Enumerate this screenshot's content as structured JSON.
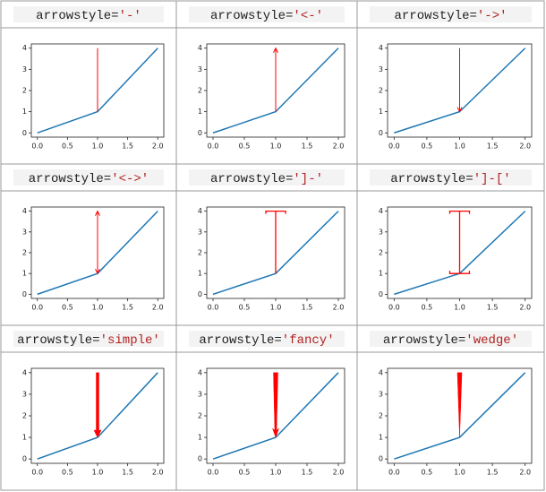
{
  "chart_data": [
    {
      "type": "line",
      "title": [
        "arrowstyle=",
        "'-'"
      ],
      "x": [
        0,
        1,
        2
      ],
      "values": [
        0,
        1,
        4
      ],
      "color": "#1f77b4",
      "xlim": [
        -0.1,
        2.1
      ],
      "ylim": [
        -0.2,
        4.2
      ],
      "xticks": [
        {
          "value": 0,
          "label": "0.0"
        },
        0.5,
        {
          "value": 1,
          "label": "1.0"
        },
        1.5,
        {
          "value": 2,
          "label": "2.0"
        }
      ],
      "yticks": [
        0,
        1,
        2,
        3,
        4
      ],
      "annotation": {
        "arrowstyle": "-",
        "xy": [
          1,
          1
        ],
        "xytext": [
          1,
          4
        ],
        "color": "#ff0000"
      }
    },
    {
      "type": "line",
      "title": [
        "arrowstyle=",
        "'<-'"
      ],
      "x": [
        0,
        1,
        2
      ],
      "values": [
        0,
        1,
        4
      ],
      "color": "#1f77b4",
      "xlim": [
        -0.1,
        2.1
      ],
      "ylim": [
        -0.2,
        4.2
      ],
      "xticks": [
        {
          "value": 0,
          "label": "0.0"
        },
        0.5,
        {
          "value": 1,
          "label": "1.0"
        },
        1.5,
        {
          "value": 2,
          "label": "2.0"
        }
      ],
      "yticks": [
        0,
        1,
        2,
        3,
        4
      ],
      "annotation": {
        "arrowstyle": "<-",
        "xy": [
          1,
          1
        ],
        "xytext": [
          1,
          4
        ],
        "color": "#ff0000"
      }
    },
    {
      "type": "line",
      "title": [
        "arrowstyle=",
        "'->'"
      ],
      "x": [
        0,
        1,
        2
      ],
      "values": [
        0,
        1,
        4
      ],
      "color": "#1f77b4",
      "xlim": [
        -0.1,
        2.1
      ],
      "ylim": [
        -0.2,
        4.2
      ],
      "xticks": [
        {
          "value": 0,
          "label": "0.0"
        },
        0.5,
        {
          "value": 1,
          "label": "1.0"
        },
        1.5,
        {
          "value": 2,
          "label": "2.0"
        }
      ],
      "yticks": [
        0,
        1,
        2,
        3,
        4
      ],
      "annotation": {
        "arrowstyle": "->",
        "xy": [
          1,
          1
        ],
        "xytext": [
          1,
          4
        ],
        "color": "#ff0000"
      }
    },
    {
      "type": "line",
      "title": [
        "arrowstyle=",
        "'<->'"
      ],
      "x": [
        0,
        1,
        2
      ],
      "values": [
        0,
        1,
        4
      ],
      "color": "#1f77b4",
      "xlim": [
        -0.1,
        2.1
      ],
      "ylim": [
        -0.2,
        4.2
      ],
      "xticks": [
        {
          "value": 0,
          "label": "0.0"
        },
        0.5,
        {
          "value": 1,
          "label": "1.0"
        },
        1.5,
        {
          "value": 2,
          "label": "2.0"
        }
      ],
      "yticks": [
        0,
        1,
        2,
        3,
        4
      ],
      "annotation": {
        "arrowstyle": "<->",
        "xy": [
          1,
          1
        ],
        "xytext": [
          1,
          4
        ],
        "color": "#ff0000"
      }
    },
    {
      "type": "line",
      "title": [
        "arrowstyle=",
        "']-'"
      ],
      "x": [
        0,
        1,
        2
      ],
      "values": [
        0,
        1,
        4
      ],
      "color": "#1f77b4",
      "xlim": [
        -0.1,
        2.1
      ],
      "ylim": [
        -0.2,
        4.2
      ],
      "xticks": [
        {
          "value": 0,
          "label": "0.0"
        },
        0.5,
        {
          "value": 1,
          "label": "1.0"
        },
        1.5,
        {
          "value": 2,
          "label": "2.0"
        }
      ],
      "yticks": [
        0,
        1,
        2,
        3,
        4
      ],
      "annotation": {
        "arrowstyle": "]-",
        "xy": [
          1,
          1
        ],
        "xytext": [
          1,
          4
        ],
        "color": "#ff0000"
      }
    },
    {
      "type": "line",
      "title": [
        "arrowstyle=",
        "']-['"
      ],
      "x": [
        0,
        1,
        2
      ],
      "values": [
        0,
        1,
        4
      ],
      "color": "#1f77b4",
      "xlim": [
        -0.1,
        2.1
      ],
      "ylim": [
        -0.2,
        4.2
      ],
      "xticks": [
        {
          "value": 0,
          "label": "0.0"
        },
        0.5,
        {
          "value": 1,
          "label": "1.0"
        },
        1.5,
        {
          "value": 2,
          "label": "2.0"
        }
      ],
      "yticks": [
        0,
        1,
        2,
        3,
        4
      ],
      "annotation": {
        "arrowstyle": "]-[",
        "xy": [
          1,
          1
        ],
        "xytext": [
          1,
          4
        ],
        "color": "#ff0000"
      }
    },
    {
      "type": "line",
      "title": [
        "arrowstyle=",
        "'simple'"
      ],
      "x": [
        0,
        1,
        2
      ],
      "values": [
        0,
        1,
        4
      ],
      "color": "#1f77b4",
      "xlim": [
        -0.1,
        2.1
      ],
      "ylim": [
        -0.2,
        4.2
      ],
      "xticks": [
        {
          "value": 0,
          "label": "0.0"
        },
        0.5,
        {
          "value": 1,
          "label": "1.0"
        },
        1.5,
        {
          "value": 2,
          "label": "2.0"
        }
      ],
      "yticks": [
        0,
        1,
        2,
        3,
        4
      ],
      "annotation": {
        "arrowstyle": "simple",
        "xy": [
          1,
          1
        ],
        "xytext": [
          1,
          4
        ],
        "color": "#ff0000"
      }
    },
    {
      "type": "line",
      "title": [
        "arrowstyle=",
        "'fancy'"
      ],
      "x": [
        0,
        1,
        2
      ],
      "values": [
        0,
        1,
        4
      ],
      "color": "#1f77b4",
      "xlim": [
        -0.1,
        2.1
      ],
      "ylim": [
        -0.2,
        4.2
      ],
      "xticks": [
        {
          "value": 0,
          "label": "0.0"
        },
        0.5,
        {
          "value": 1,
          "label": "1.0"
        },
        1.5,
        {
          "value": 2,
          "label": "2.0"
        }
      ],
      "yticks": [
        0,
        1,
        2,
        3,
        4
      ],
      "annotation": {
        "arrowstyle": "fancy",
        "xy": [
          1,
          1
        ],
        "xytext": [
          1,
          4
        ],
        "color": "#ff0000"
      }
    },
    {
      "type": "line",
      "title": [
        "arrowstyle=",
        "'wedge'"
      ],
      "x": [
        0,
        1,
        2
      ],
      "values": [
        0,
        1,
        4
      ],
      "color": "#1f77b4",
      "xlim": [
        -0.1,
        2.1
      ],
      "ylim": [
        -0.2,
        4.2
      ],
      "xticks": [
        {
          "value": 0,
          "label": "0.0"
        },
        0.5,
        {
          "value": 1,
          "label": "1.0"
        },
        1.5,
        {
          "value": 2,
          "label": "2.0"
        }
      ],
      "yticks": [
        0,
        1,
        2,
        3,
        4
      ],
      "annotation": {
        "arrowstyle": "wedge",
        "xy": [
          1,
          1
        ],
        "xytext": [
          1,
          4
        ],
        "color": "#ff0000"
      }
    }
  ]
}
